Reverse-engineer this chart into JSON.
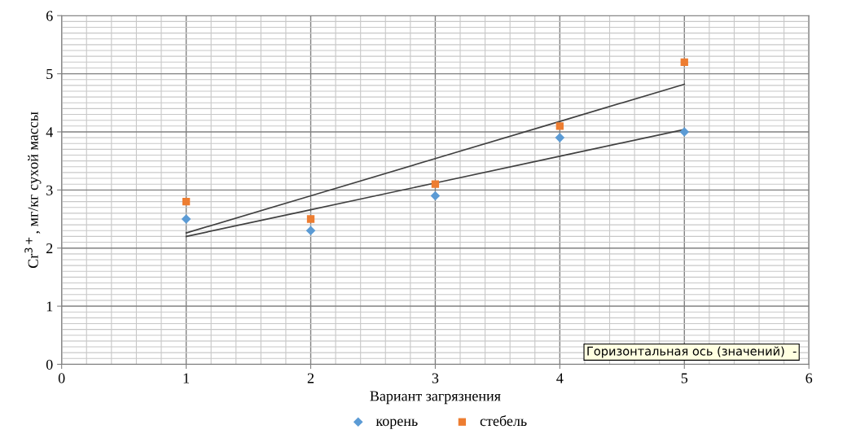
{
  "chart_data": {
    "type": "scatter",
    "xlabel": "Вариант загрязнения",
    "ylabel": "Cr$^{3+}$, мг/кг сухой массы",
    "x": [
      1,
      2,
      3,
      4,
      5
    ],
    "series": [
      {
        "name": "корень",
        "color": "#5b9bd5",
        "marker": "diamond",
        "values": [
          2.5,
          2.3,
          2.9,
          3.9,
          4.0
        ]
      },
      {
        "name": "стебель",
        "color": "#ed7d31",
        "marker": "square",
        "values": [
          2.8,
          2.5,
          3.1,
          4.1,
          5.2
        ]
      },
      {
        "type": "line",
        "color": "#404040",
        "marker": "none",
        "values": [
          2.2,
          2.66,
          3.12,
          3.58,
          4.04
        ]
      },
      {
        "type": "line",
        "color": "#404040",
        "marker": "none",
        "values": [
          2.26,
          2.9,
          3.54,
          4.18,
          4.82
        ]
      }
    ],
    "xlim": [
      0,
      6
    ],
    "xticks": [
      0,
      1,
      2,
      3,
      4,
      5,
      6
    ],
    "ylim": [
      0,
      6
    ],
    "yticks": [
      0,
      1,
      2,
      3,
      4,
      5,
      6
    ],
    "grid": true,
    "legend": "bottom",
    "annotations": [
      "Горизонтальная ось (значений)  -"
    ]
  }
}
